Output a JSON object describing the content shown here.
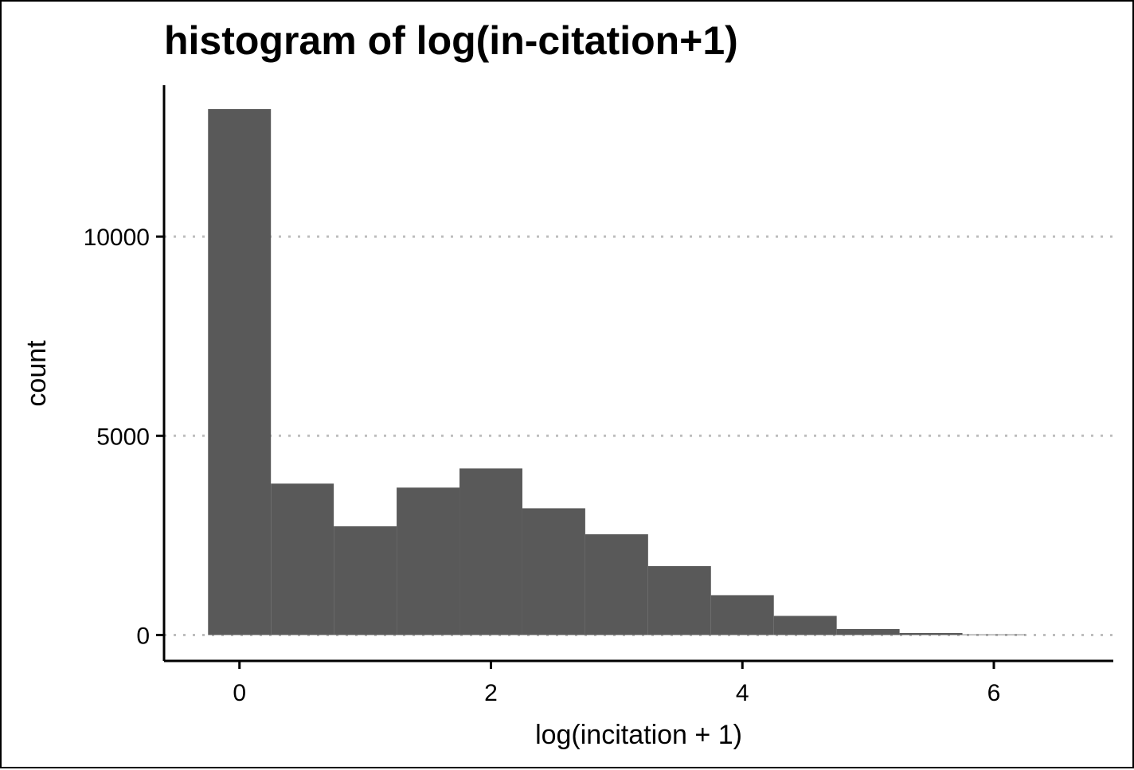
{
  "chart_data": {
    "type": "bar",
    "title": "histogram of log(in-citation+1)",
    "xlabel": "log(incitation + 1)",
    "ylabel": "count",
    "xlim": [
      -0.6,
      6.95
    ],
    "ylim": [
      -650,
      13800
    ],
    "x_ticks": [
      0,
      2,
      4,
      6
    ],
    "y_ticks": [
      0,
      5000,
      10000
    ],
    "x_tick_labels": [
      "0",
      "2",
      "4",
      "6"
    ],
    "y_tick_labels": [
      "0",
      "5000",
      "10000"
    ],
    "bin_width": 0.5,
    "bins": [
      {
        "x0": -0.25,
        "x1": 0.25,
        "count": 13200
      },
      {
        "x0": 0.25,
        "x1": 0.75,
        "count": 3800
      },
      {
        "x0": 0.75,
        "x1": 1.25,
        "count": 2730
      },
      {
        "x0": 1.25,
        "x1": 1.75,
        "count": 3700
      },
      {
        "x0": 1.75,
        "x1": 2.25,
        "count": 4180
      },
      {
        "x0": 2.25,
        "x1": 2.75,
        "count": 3180
      },
      {
        "x0": 2.75,
        "x1": 3.25,
        "count": 2530
      },
      {
        "x0": 3.25,
        "x1": 3.75,
        "count": 1730
      },
      {
        "x0": 3.75,
        "x1": 4.25,
        "count": 1000
      },
      {
        "x0": 4.25,
        "x1": 4.75,
        "count": 480
      },
      {
        "x0": 4.75,
        "x1": 5.25,
        "count": 150
      },
      {
        "x0": 5.25,
        "x1": 5.75,
        "count": 50
      },
      {
        "x0": 5.75,
        "x1": 6.25,
        "count": 15
      }
    ],
    "grid": {
      "y_major": true,
      "style": "dotted",
      "color": "#bdbdbd"
    },
    "bar_color": "#595959",
    "legend": "none"
  }
}
